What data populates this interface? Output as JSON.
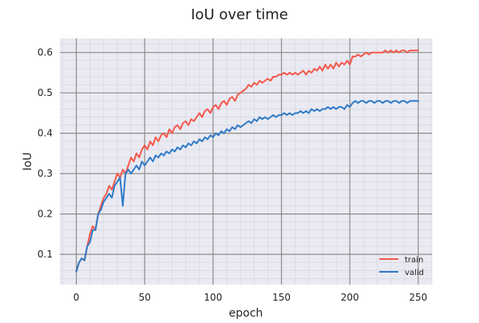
{
  "chart_data": {
    "type": "line",
    "title": "IoU over time",
    "xlabel": "epoch",
    "ylabel": "IoU",
    "xlim": [
      -12,
      260
    ],
    "ylim": [
      0.025,
      0.635
    ],
    "xticks": [
      0,
      50,
      100,
      150,
      200,
      250
    ],
    "yticks": [
      0.1,
      0.2,
      0.3,
      0.4,
      0.5,
      0.6
    ],
    "grid": true,
    "legend_position": "lower-right",
    "series": [
      {
        "name": "train",
        "color": "#f4584a",
        "points": [
          [
            0,
            0.06
          ],
          [
            2,
            0.08
          ],
          [
            4,
            0.09
          ],
          [
            6,
            0.085
          ],
          [
            8,
            0.12
          ],
          [
            10,
            0.15
          ],
          [
            12,
            0.17
          ],
          [
            14,
            0.16
          ],
          [
            16,
            0.2
          ],
          [
            18,
            0.22
          ],
          [
            20,
            0.24
          ],
          [
            22,
            0.25
          ],
          [
            24,
            0.27
          ],
          [
            26,
            0.26
          ],
          [
            28,
            0.28
          ],
          [
            30,
            0.3
          ],
          [
            32,
            0.29
          ],
          [
            34,
            0.31
          ],
          [
            36,
            0.3
          ],
          [
            38,
            0.32
          ],
          [
            40,
            0.34
          ],
          [
            42,
            0.33
          ],
          [
            44,
            0.35
          ],
          [
            46,
            0.34
          ],
          [
            48,
            0.36
          ],
          [
            50,
            0.37
          ],
          [
            52,
            0.36
          ],
          [
            54,
            0.38
          ],
          [
            56,
            0.37
          ],
          [
            58,
            0.39
          ],
          [
            60,
            0.38
          ],
          [
            62,
            0.395
          ],
          [
            64,
            0.4
          ],
          [
            66,
            0.39
          ],
          [
            68,
            0.41
          ],
          [
            70,
            0.4
          ],
          [
            72,
            0.415
          ],
          [
            74,
            0.42
          ],
          [
            76,
            0.41
          ],
          [
            78,
            0.425
          ],
          [
            80,
            0.43
          ],
          [
            82,
            0.42
          ],
          [
            84,
            0.435
          ],
          [
            86,
            0.43
          ],
          [
            88,
            0.44
          ],
          [
            90,
            0.45
          ],
          [
            92,
            0.44
          ],
          [
            94,
            0.455
          ],
          [
            96,
            0.46
          ],
          [
            98,
            0.45
          ],
          [
            100,
            0.465
          ],
          [
            102,
            0.47
          ],
          [
            104,
            0.46
          ],
          [
            106,
            0.475
          ],
          [
            108,
            0.48
          ],
          [
            110,
            0.47
          ],
          [
            112,
            0.485
          ],
          [
            114,
            0.49
          ],
          [
            116,
            0.48
          ],
          [
            118,
            0.495
          ],
          [
            120,
            0.5
          ],
          [
            122,
            0.505
          ],
          [
            124,
            0.51
          ],
          [
            126,
            0.52
          ],
          [
            128,
            0.515
          ],
          [
            130,
            0.525
          ],
          [
            132,
            0.52
          ],
          [
            134,
            0.53
          ],
          [
            136,
            0.525
          ],
          [
            138,
            0.53
          ],
          [
            140,
            0.535
          ],
          [
            142,
            0.53
          ],
          [
            144,
            0.54
          ],
          [
            146,
            0.54
          ],
          [
            148,
            0.545
          ],
          [
            150,
            0.545
          ],
          [
            152,
            0.55
          ],
          [
            154,
            0.545
          ],
          [
            156,
            0.55
          ],
          [
            158,
            0.545
          ],
          [
            160,
            0.55
          ],
          [
            162,
            0.545
          ],
          [
            164,
            0.55
          ],
          [
            166,
            0.555
          ],
          [
            168,
            0.545
          ],
          [
            170,
            0.555
          ],
          [
            172,
            0.55
          ],
          [
            174,
            0.56
          ],
          [
            176,
            0.555
          ],
          [
            178,
            0.565
          ],
          [
            180,
            0.555
          ],
          [
            182,
            0.57
          ],
          [
            184,
            0.56
          ],
          [
            186,
            0.57
          ],
          [
            188,
            0.56
          ],
          [
            190,
            0.575
          ],
          [
            192,
            0.565
          ],
          [
            194,
            0.575
          ],
          [
            196,
            0.57
          ],
          [
            198,
            0.58
          ],
          [
            200,
            0.57
          ],
          [
            202,
            0.59
          ],
          [
            204,
            0.59
          ],
          [
            206,
            0.595
          ],
          [
            208,
            0.59
          ],
          [
            210,
            0.595
          ],
          [
            212,
            0.6
          ],
          [
            214,
            0.595
          ],
          [
            216,
            0.6
          ],
          [
            218,
            0.6
          ],
          [
            220,
            0.6
          ],
          [
            222,
            0.6
          ],
          [
            224,
            0.6
          ],
          [
            226,
            0.605
          ],
          [
            228,
            0.6
          ],
          [
            230,
            0.605
          ],
          [
            232,
            0.6
          ],
          [
            234,
            0.605
          ],
          [
            236,
            0.6
          ],
          [
            238,
            0.605
          ],
          [
            240,
            0.605
          ],
          [
            242,
            0.6
          ],
          [
            244,
            0.605
          ],
          [
            246,
            0.605
          ],
          [
            248,
            0.605
          ],
          [
            250,
            0.605
          ]
        ]
      },
      {
        "name": "valid",
        "color": "#2f7bc8",
        "points": [
          [
            0,
            0.057
          ],
          [
            2,
            0.08
          ],
          [
            4,
            0.09
          ],
          [
            6,
            0.085
          ],
          [
            8,
            0.12
          ],
          [
            10,
            0.13
          ],
          [
            12,
            0.16
          ],
          [
            14,
            0.16
          ],
          [
            16,
            0.2
          ],
          [
            18,
            0.21
          ],
          [
            20,
            0.23
          ],
          [
            22,
            0.24
          ],
          [
            24,
            0.25
          ],
          [
            26,
            0.24
          ],
          [
            28,
            0.27
          ],
          [
            30,
            0.28
          ],
          [
            32,
            0.29
          ],
          [
            34,
            0.22
          ],
          [
            36,
            0.3
          ],
          [
            38,
            0.31
          ],
          [
            40,
            0.3
          ],
          [
            42,
            0.31
          ],
          [
            44,
            0.32
          ],
          [
            46,
            0.31
          ],
          [
            48,
            0.33
          ],
          [
            50,
            0.32
          ],
          [
            52,
            0.33
          ],
          [
            54,
            0.34
          ],
          [
            56,
            0.33
          ],
          [
            58,
            0.345
          ],
          [
            60,
            0.34
          ],
          [
            62,
            0.35
          ],
          [
            64,
            0.345
          ],
          [
            66,
            0.355
          ],
          [
            68,
            0.35
          ],
          [
            70,
            0.36
          ],
          [
            72,
            0.355
          ],
          [
            74,
            0.365
          ],
          [
            76,
            0.36
          ],
          [
            78,
            0.37
          ],
          [
            80,
            0.365
          ],
          [
            82,
            0.375
          ],
          [
            84,
            0.37
          ],
          [
            86,
            0.38
          ],
          [
            88,
            0.375
          ],
          [
            90,
            0.385
          ],
          [
            92,
            0.38
          ],
          [
            94,
            0.39
          ],
          [
            96,
            0.385
          ],
          [
            98,
            0.395
          ],
          [
            100,
            0.39
          ],
          [
            102,
            0.4
          ],
          [
            104,
            0.395
          ],
          [
            106,
            0.405
          ],
          [
            108,
            0.4
          ],
          [
            110,
            0.41
          ],
          [
            112,
            0.405
          ],
          [
            114,
            0.415
          ],
          [
            116,
            0.41
          ],
          [
            118,
            0.42
          ],
          [
            120,
            0.415
          ],
          [
            122,
            0.42
          ],
          [
            124,
            0.425
          ],
          [
            126,
            0.43
          ],
          [
            128,
            0.425
          ],
          [
            130,
            0.435
          ],
          [
            132,
            0.43
          ],
          [
            134,
            0.44
          ],
          [
            136,
            0.435
          ],
          [
            138,
            0.44
          ],
          [
            140,
            0.435
          ],
          [
            142,
            0.44
          ],
          [
            144,
            0.445
          ],
          [
            146,
            0.44
          ],
          [
            148,
            0.445
          ],
          [
            150,
            0.445
          ],
          [
            152,
            0.45
          ],
          [
            154,
            0.445
          ],
          [
            156,
            0.45
          ],
          [
            158,
            0.445
          ],
          [
            160,
            0.45
          ],
          [
            162,
            0.45
          ],
          [
            164,
            0.455
          ],
          [
            166,
            0.45
          ],
          [
            168,
            0.455
          ],
          [
            170,
            0.45
          ],
          [
            172,
            0.46
          ],
          [
            174,
            0.455
          ],
          [
            176,
            0.46
          ],
          [
            178,
            0.455
          ],
          [
            180,
            0.46
          ],
          [
            182,
            0.46
          ],
          [
            184,
            0.465
          ],
          [
            186,
            0.46
          ],
          [
            188,
            0.465
          ],
          [
            190,
            0.46
          ],
          [
            192,
            0.465
          ],
          [
            194,
            0.465
          ],
          [
            196,
            0.46
          ],
          [
            198,
            0.47
          ],
          [
            200,
            0.465
          ],
          [
            202,
            0.475
          ],
          [
            204,
            0.48
          ],
          [
            206,
            0.475
          ],
          [
            208,
            0.48
          ],
          [
            210,
            0.48
          ],
          [
            212,
            0.475
          ],
          [
            214,
            0.48
          ],
          [
            216,
            0.48
          ],
          [
            218,
            0.475
          ],
          [
            220,
            0.48
          ],
          [
            222,
            0.48
          ],
          [
            224,
            0.475
          ],
          [
            226,
            0.48
          ],
          [
            228,
            0.48
          ],
          [
            230,
            0.475
          ],
          [
            232,
            0.48
          ],
          [
            234,
            0.48
          ],
          [
            236,
            0.475
          ],
          [
            238,
            0.48
          ],
          [
            240,
            0.48
          ],
          [
            242,
            0.475
          ],
          [
            244,
            0.48
          ],
          [
            246,
            0.48
          ],
          [
            248,
            0.48
          ],
          [
            250,
            0.48
          ]
        ]
      }
    ]
  },
  "colors": {
    "plot_background": "#eaeaf2",
    "major_grid": "#8c8c8c",
    "minor_grid": "#d8d8e4"
  }
}
